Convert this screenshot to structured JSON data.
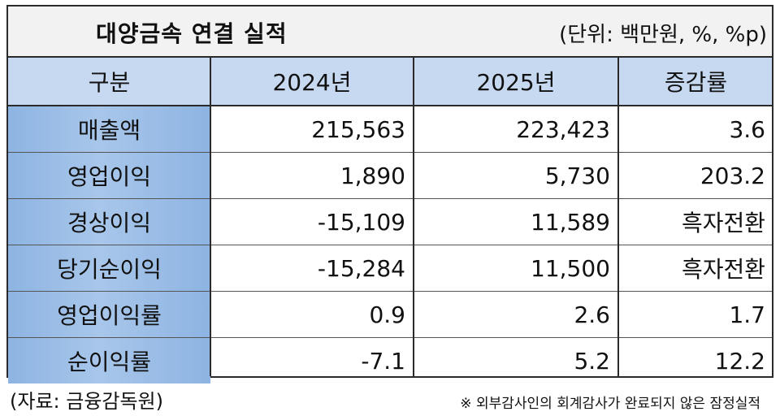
{
  "title": "대양금속 연결 실적",
  "unit": "(단위: 백만원, %, %p)",
  "headers": [
    "구분",
    "2024년",
    "2025년",
    "증감률"
  ],
  "rows": [
    {
      "label": "매출액",
      "y2024": "215,563",
      "y2025": "223,423",
      "change": "3.6"
    },
    {
      "label": "영업이익",
      "y2024": "1,890",
      "y2025": "5,730",
      "change": "203.2"
    },
    {
      "label": "경상이익",
      "y2024": "-15,109",
      "y2025": "11,589",
      "change": "흑자전환"
    },
    {
      "label": "당기순이익",
      "y2024": "-15,284",
      "y2025": "11,500",
      "change": "흑자전환"
    },
    {
      "label": "영업이익률",
      "y2024": "0.9",
      "y2025": "2.6",
      "change": "1.7"
    },
    {
      "label": "순이익률",
      "y2024": "-7.1",
      "y2025": "5.2",
      "change": "12.2"
    }
  ],
  "source": "(자료: 금융감독원)",
  "note": "※ 외부감사인의 회계감사가 완료되지 않은 잠정실적",
  "colors": {
    "title_bg": "#f2f2f2",
    "header_bg": "#c6d9f1",
    "label_bg": "#8db4e2"
  }
}
